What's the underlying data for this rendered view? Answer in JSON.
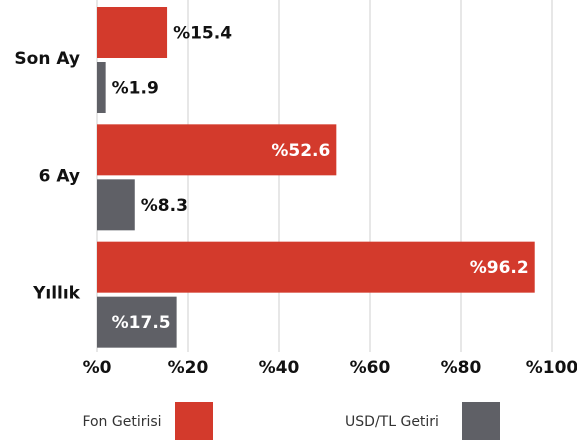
{
  "chart_data": {
    "type": "barh",
    "categories": [
      "Son Ay",
      "6 Ay",
      "Yıllık"
    ],
    "series": [
      {
        "name": "Fon Getirisi",
        "color": "#d33a2c",
        "values": [
          15.4,
          52.6,
          96.2
        ],
        "value_labels": [
          "%15.4",
          "%52.6",
          "%96.2"
        ]
      },
      {
        "name": "USD/TL Getiri",
        "color": "#5f6066",
        "values": [
          1.9,
          8.3,
          17.5
        ],
        "value_labels": [
          "%1.9",
          "%8.3",
          "%17.5"
        ]
      }
    ],
    "xlim": [
      0,
      100
    ],
    "xticks": [
      {
        "value": 0,
        "label": "%0"
      },
      {
        "value": 20,
        "label": "%20"
      },
      {
        "value": 40,
        "label": "%40"
      },
      {
        "value": 60,
        "label": "%60"
      },
      {
        "value": 80,
        "label": "%80"
      },
      {
        "value": 100,
        "label": "%100"
      }
    ],
    "grid": true,
    "legend": "bottom"
  }
}
